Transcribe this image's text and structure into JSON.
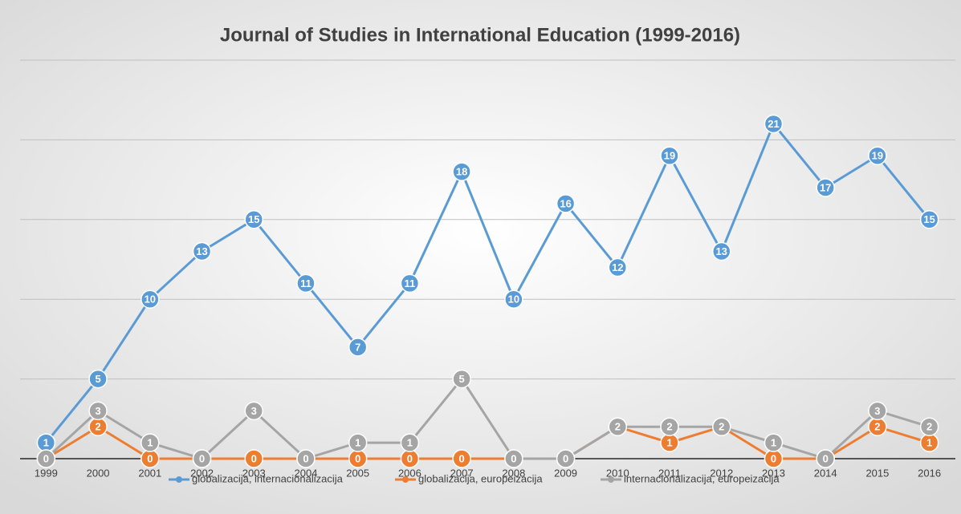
{
  "chart_data": {
    "type": "line",
    "title": "Journal of Studies in International Education (1999-2016)",
    "categories": [
      "1999",
      "2000",
      "2001",
      "2002",
      "2003",
      "2004",
      "2005",
      "2006",
      "2007",
      "2008",
      "2009",
      "2010",
      "2011",
      "2012",
      "2013",
      "2014",
      "2015",
      "2016"
    ],
    "series": [
      {
        "name": "globalizacija, internacionalizacija",
        "color": "#5b9bd5",
        "values": [
          1,
          5,
          10,
          13,
          15,
          11,
          7,
          11,
          18,
          10,
          16,
          12,
          19,
          13,
          21,
          17,
          19,
          15
        ]
      },
      {
        "name": "globalizacija, europeizacija",
        "color": "#ed7d31",
        "values": [
          0,
          2,
          0,
          0,
          0,
          0,
          0,
          0,
          0,
          0,
          0,
          2,
          1,
          2,
          0,
          0,
          2,
          1
        ]
      },
      {
        "name": "internacionalizacija, europeizacija",
        "color": "#a5a5a5",
        "values": [
          0,
          3,
          1,
          0,
          3,
          0,
          1,
          1,
          5,
          0,
          0,
          2,
          2,
          2,
          1,
          0,
          3,
          2
        ]
      }
    ],
    "ylim": [
      0,
      25
    ],
    "yticks": [
      0,
      5,
      10,
      15,
      20,
      25
    ],
    "grid": true,
    "legend": "bottom"
  }
}
